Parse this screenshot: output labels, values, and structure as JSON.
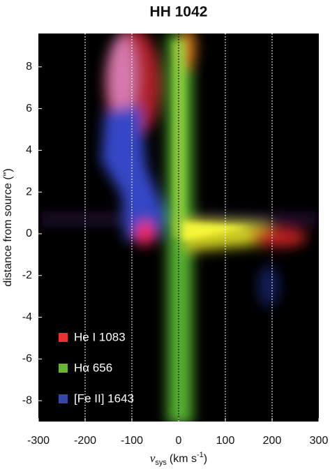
{
  "chart_data": {
    "type": "image",
    "title": "HH 1042",
    "xlabel": {
      "symbol": "v",
      "subscript": "sys",
      "unit": "(km s",
      "exponent": "-1",
      "close": ")"
    },
    "ylabel": "distance from source (\")",
    "xlim": [
      -300,
      300
    ],
    "xticks": [
      -300,
      -200,
      -100,
      0,
      100,
      200,
      300
    ],
    "ylim": [
      -9,
      9.6
    ],
    "yticks": [
      -8,
      -6,
      -4,
      -2,
      0,
      2,
      4,
      6,
      8
    ],
    "grid": true,
    "grid_color": "#ffffff",
    "zero_line_color": "#000000",
    "legend_location": "lower left",
    "series": [
      {
        "name": "He I 1083",
        "color": "#e8322f"
      },
      {
        "name": "Hα 656",
        "color": "#66b62f"
      },
      {
        "name": "[Fe II] 1643",
        "color": "#3446a6"
      }
    ]
  }
}
